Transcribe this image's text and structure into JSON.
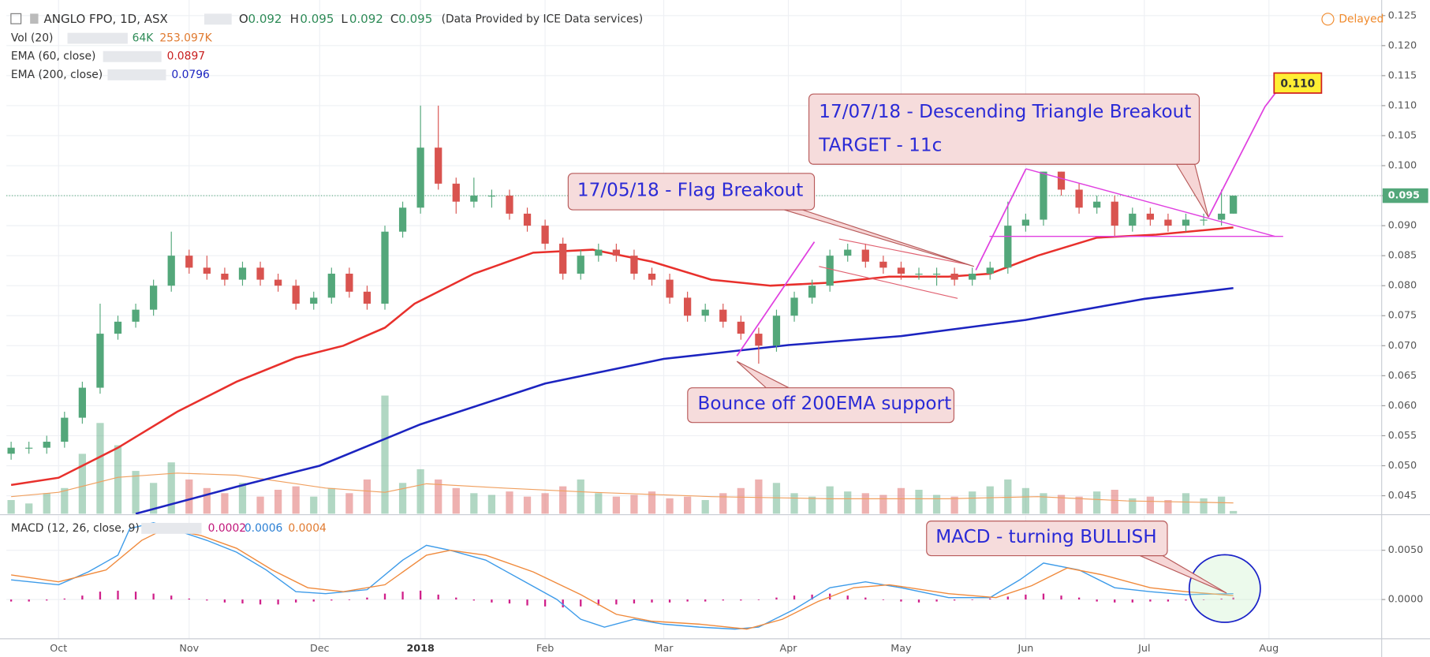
{
  "header": {
    "symbol": "ANGLO FPO, 1D, ASX",
    "ohlc": [
      {
        "label": "O",
        "value": 0.092
      },
      {
        "label": "H",
        "value": 0.095
      },
      {
        "label": "L",
        "value": 0.092
      },
      {
        "label": "C",
        "value": 0.095
      }
    ],
    "source": "(Data Provided by ICE Data services)",
    "status": "Delayed"
  },
  "annotations": {
    "flag": "17/05/18 - Flag Breakout",
    "triangle": "17/07/18 - Descending Triangle Breakout",
    "target_text": "TARGET - 11c",
    "bounce": "Bounce off 200EMA support",
    "macd": "MACD - turning BULLISH",
    "target": {
      "value": 0.11,
      "label": "0.110"
    }
  },
  "chart_data": {
    "type": "candlestick",
    "up_color": "#53a77a",
    "down_color": "#d9534f",
    "xlim": [
      -8.8,
      223
    ],
    "xticks": [
      {
        "value": 0,
        "label": "Oct"
      },
      {
        "value": 22,
        "label": "Nov"
      },
      {
        "value": 44,
        "label": "Dec"
      },
      {
        "value": 61,
        "label": "2018"
      },
      {
        "value": 82,
        "label": "Feb"
      },
      {
        "value": 102,
        "label": "Mar"
      },
      {
        "value": 123,
        "label": "Apr"
      },
      {
        "value": 142,
        "label": "May"
      },
      {
        "value": 163,
        "label": "Jun"
      },
      {
        "value": 183,
        "label": "Jul"
      },
      {
        "value": 204,
        "label": "Aug"
      }
    ],
    "ylim": [
      0.042,
      0.1276
    ],
    "yticks": [
      0.045,
      {
        "value": 0.05,
        "label": "0.050"
      },
      0.055,
      {
        "value": 0.06,
        "label": "0.060"
      },
      0.065,
      {
        "value": 0.07,
        "label": "0.070"
      },
      0.075,
      {
        "value": 0.08,
        "label": "0.080"
      },
      0.085,
      {
        "value": 0.09,
        "label": "0.090"
      },
      0.095,
      {
        "value": 0.1,
        "label": "0.100"
      },
      0.105,
      {
        "value": 0.11,
        "label": "0.110"
      },
      0.115,
      {
        "value": 0.12,
        "label": "0.120"
      },
      0.125
    ],
    "grid": true,
    "x": [
      -8,
      -5,
      -2,
      1,
      4,
      7,
      10,
      13,
      16,
      19,
      22,
      25,
      28,
      31,
      34,
      37,
      40,
      43,
      46,
      49,
      52,
      55,
      58,
      61,
      64,
      67,
      70,
      73,
      76,
      79,
      82,
      85,
      88,
      91,
      94,
      97,
      100,
      103,
      106,
      109,
      112,
      115,
      118,
      121,
      124,
      127,
      130,
      133,
      136,
      139,
      142,
      145,
      148,
      151,
      154,
      157,
      160,
      163,
      166,
      169,
      172,
      175,
      178,
      181,
      184,
      187,
      190,
      193,
      196,
      198
    ],
    "open": [
      0.052,
      0.053,
      0.053,
      0.054,
      0.058,
      0.063,
      0.072,
      0.074,
      0.076,
      0.08,
      0.085,
      0.083,
      0.082,
      0.081,
      0.083,
      0.081,
      0.08,
      0.077,
      0.078,
      0.082,
      0.079,
      0.077,
      0.089,
      0.093,
      0.103,
      0.097,
      0.094,
      0.095,
      0.095,
      0.092,
      0.09,
      0.087,
      0.082,
      0.085,
      0.086,
      0.085,
      0.082,
      0.081,
      0.078,
      0.075,
      0.076,
      0.074,
      0.072,
      0.07,
      0.075,
      0.078,
      0.08,
      0.085,
      0.086,
      0.084,
      0.083,
      0.082,
      0.082,
      0.082,
      0.081,
      0.082,
      0.083,
      0.09,
      0.091,
      0.099,
      0.096,
      0.093,
      0.094,
      0.09,
      0.092,
      0.091,
      0.09,
      0.091,
      0.091,
      0.092
    ],
    "high": [
      0.054,
      0.054,
      0.055,
      0.059,
      0.064,
      0.077,
      0.075,
      0.077,
      0.081,
      0.089,
      0.086,
      0.085,
      0.083,
      0.084,
      0.084,
      0.082,
      0.081,
      0.079,
      0.083,
      0.083,
      0.08,
      0.09,
      0.094,
      0.11,
      0.11,
      0.098,
      0.098,
      0.096,
      0.096,
      0.093,
      0.091,
      0.088,
      0.086,
      0.087,
      0.087,
      0.086,
      0.083,
      0.082,
      0.079,
      0.077,
      0.077,
      0.075,
      0.073,
      0.076,
      0.079,
      0.081,
      0.086,
      0.087,
      0.087,
      0.085,
      0.084,
      0.083,
      0.083,
      0.083,
      0.083,
      0.084,
      0.094,
      0.092,
      0.099,
      0.099,
      0.097,
      0.095,
      0.095,
      0.093,
      0.093,
      0.092,
      0.092,
      0.092,
      0.096,
      0.095
    ],
    "low": [
      0.051,
      0.052,
      0.052,
      0.053,
      0.057,
      0.062,
      0.071,
      0.073,
      0.075,
      0.079,
      0.082,
      0.081,
      0.08,
      0.08,
      0.08,
      0.079,
      0.076,
      0.076,
      0.077,
      0.078,
      0.076,
      0.076,
      0.088,
      0.092,
      0.096,
      0.092,
      0.093,
      0.093,
      0.091,
      0.089,
      0.086,
      0.081,
      0.081,
      0.084,
      0.084,
      0.081,
      0.08,
      0.077,
      0.074,
      0.074,
      0.073,
      0.071,
      0.067,
      0.069,
      0.074,
      0.077,
      0.079,
      0.084,
      0.083,
      0.082,
      0.081,
      0.081,
      0.08,
      0.08,
      0.08,
      0.081,
      0.082,
      0.089,
      0.09,
      0.095,
      0.092,
      0.092,
      0.088,
      0.089,
      0.09,
      0.089,
      0.089,
      0.09,
      0.09,
      0.092
    ],
    "close": [
      0.053,
      0.053,
      0.054,
      0.058,
      0.063,
      0.072,
      0.074,
      0.076,
      0.08,
      0.085,
      0.083,
      0.082,
      0.081,
      0.083,
      0.081,
      0.08,
      0.077,
      0.078,
      0.082,
      0.079,
      0.077,
      0.089,
      0.093,
      0.103,
      0.097,
      0.094,
      0.095,
      0.095,
      0.092,
      0.09,
      0.087,
      0.082,
      0.085,
      0.086,
      0.085,
      0.082,
      0.081,
      0.078,
      0.075,
      0.076,
      0.074,
      0.072,
      0.07,
      0.075,
      0.078,
      0.08,
      0.085,
      0.086,
      0.084,
      0.083,
      0.082,
      0.082,
      0.082,
      0.081,
      0.082,
      0.083,
      0.09,
      0.091,
      0.099,
      0.096,
      0.093,
      0.094,
      0.09,
      0.092,
      0.091,
      0.09,
      0.091,
      0.091,
      0.092,
      0.095
    ],
    "volume": {
      "name": "Vol (20)",
      "ylim": [
        0,
        12000000
      ],
      "last_label": "64K",
      "values": [
        320000,
        240000,
        480000,
        600000,
        1400000,
        2120000,
        1600000,
        1000000,
        720000,
        1200000,
        800000,
        600000,
        480000,
        720000,
        400000,
        560000,
        640000,
        400000,
        600000,
        480000,
        800000,
        2760000,
        720000,
        1040000,
        800000,
        600000,
        480000,
        440000,
        520000,
        400000,
        480000,
        640000,
        800000,
        480000,
        400000,
        440000,
        520000,
        360000,
        400000,
        320000,
        480000,
        600000,
        800000,
        720000,
        480000,
        400000,
        640000,
        520000,
        480000,
        440000,
        600000,
        560000,
        440000,
        400000,
        520000,
        640000,
        800000,
        600000,
        480000,
        440000,
        400000,
        520000,
        560000,
        360000,
        400000,
        320000,
        480000,
        360000,
        400000,
        64000
      ],
      "ma": {
        "color": "#f0a060",
        "last_label": "253.097K",
        "x": [
          -8,
          0,
          10,
          20,
          30,
          45,
          55,
          62,
          75,
          90,
          110,
          130,
          150,
          165,
          180,
          198
        ],
        "values": [
          400000,
          500000,
          850000,
          950000,
          900000,
          600000,
          500000,
          700000,
          600000,
          500000,
          400000,
          350000,
          350000,
          400000,
          300000,
          253097
        ]
      }
    },
    "ema60": {
      "name": "EMA (60, close)",
      "color": "#e8302c",
      "x": [
        -8,
        0,
        10,
        20,
        30,
        40,
        48,
        55,
        60,
        70,
        80,
        90,
        100,
        110,
        120,
        130,
        140,
        150,
        157,
        165,
        175,
        185,
        198
      ],
      "values": [
        0.0468,
        0.048,
        0.053,
        0.059,
        0.064,
        0.068,
        0.07,
        0.073,
        0.077,
        0.082,
        0.0855,
        0.086,
        0.084,
        0.081,
        0.08,
        0.0805,
        0.0815,
        0.0815,
        0.082,
        0.085,
        0.088,
        0.0885,
        0.0897
      ]
    },
    "ema200": {
      "name": "EMA (200, close)",
      "color": "#1c24c0",
      "x": [
        13,
        30,
        44,
        61,
        82,
        102,
        123,
        142,
        163,
        183,
        198
      ],
      "values": [
        0.042,
        0.0465,
        0.05,
        0.0569,
        0.0637,
        0.0678,
        0.0701,
        0.0716,
        0.0743,
        0.0778,
        0.0796
      ]
    },
    "macd": {
      "name": "MACD (12, 26, close, 9)",
      "ylim": [
        -0.00398,
        0.00852
      ],
      "yticks": [
        {
          "value": 0.005,
          "label": "0.0050"
        },
        {
          "value": 0,
          "label": "0.0000"
        }
      ],
      "histogram": {
        "color": "#d0208a",
        "values": [
          -0.0002,
          -0.0002,
          -0.0001,
          0.0001,
          0.0004,
          0.0008,
          0.0009,
          0.0008,
          0.0006,
          0.0004,
          0.0001,
          -0.0001,
          -0.0003,
          -0.0004,
          -0.0005,
          -0.0005,
          -0.0003,
          -0.0002,
          -0.0001,
          0,
          0.0002,
          0.0006,
          0.0008,
          0.0009,
          0.0005,
          0.0002,
          -0.0001,
          -0.0003,
          -0.0004,
          -0.0006,
          -0.0007,
          -0.0008,
          -0.0007,
          -0.0006,
          -0.0005,
          -0.0004,
          -0.0003,
          -0.0003,
          -0.0002,
          -0.0002,
          -0.0001,
          -0.0001,
          0,
          0.0002,
          0.0004,
          0.0005,
          0.0006,
          0.0004,
          0.0002,
          0,
          -0.0002,
          -0.0003,
          -0.0002,
          -0.0001,
          0,
          0.0001,
          0.0003,
          0.0005,
          0.0006,
          0.0004,
          0.0002,
          -0.0002,
          -0.0003,
          -0.0003,
          -0.0002,
          -0.0002,
          -0.0001,
          0,
          0.0001,
          0.0002
        ]
      },
      "macd": {
        "color": "#3d9be9",
        "x": [
          -8,
          0,
          5,
          10,
          12,
          16,
          20,
          25,
          30,
          35,
          40,
          45,
          52,
          58,
          62,
          66,
          72,
          78,
          84,
          88,
          92,
          97,
          102,
          108,
          114,
          118,
          124,
          130,
          136,
          142,
          150,
          157,
          162,
          166,
          172,
          178,
          184,
          190,
          198
        ],
        "values": [
          0.002,
          0.0015,
          0.0028,
          0.0045,
          0.0072,
          0.0078,
          0.007,
          0.006,
          0.0048,
          0.003,
          0.0008,
          0.0006,
          0.001,
          0.004,
          0.0055,
          0.005,
          0.004,
          0.002,
          0,
          -0.002,
          -0.0028,
          -0.002,
          -0.0025,
          -0.0028,
          -0.003,
          -0.0028,
          -0.001,
          0.0012,
          0.0018,
          0.0012,
          0.0002,
          0.0002,
          0.002,
          0.0037,
          0.003,
          0.0012,
          0.0008,
          0.0005,
          0.0006
        ]
      },
      "signal": {
        "color": "#f08a3c",
        "x": [
          -8,
          0,
          8,
          14,
          18,
          24,
          30,
          36,
          42,
          48,
          55,
          62,
          66,
          72,
          80,
          88,
          94,
          100,
          108,
          116,
          122,
          128,
          134,
          140,
          150,
          158,
          164,
          170,
          176,
          184,
          190,
          198
        ],
        "values": [
          0.0025,
          0.0018,
          0.003,
          0.006,
          0.0072,
          0.0065,
          0.0052,
          0.003,
          0.0012,
          0.0008,
          0.0015,
          0.0045,
          0.005,
          0.0045,
          0.0028,
          0.0005,
          -0.0015,
          -0.0022,
          -0.0025,
          -0.003,
          -0.002,
          -0.0002,
          0.0012,
          0.0015,
          0.0006,
          0.0002,
          0.0014,
          0.0032,
          0.0025,
          0.0012,
          0.0008,
          0.0004
        ]
      }
    }
  }
}
